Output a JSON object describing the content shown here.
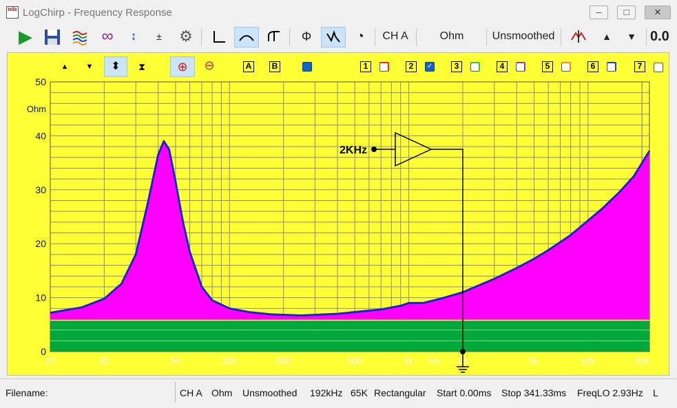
{
  "window": {
    "title": "LogChirp - Frequency Response",
    "app_icon_text": "mls"
  },
  "toolbar": {
    "channel": "CH A",
    "unit": "Ohm",
    "smoothing": "Unsmoothed",
    "value_readout": "0.0"
  },
  "plot_toolbar": {
    "boxes_ab": [
      "A",
      "B"
    ],
    "traces": [
      {
        "label": "1",
        "checked": false,
        "color": "#e0302a"
      },
      {
        "label": "2",
        "checked": true,
        "color": "#1464c8"
      },
      {
        "label": "3",
        "checked": false,
        "color": "#3cc83c"
      },
      {
        "label": "4",
        "checked": false,
        "color": "#8a3cc8"
      },
      {
        "label": "5",
        "checked": false,
        "color": "#f08c28"
      },
      {
        "label": "6",
        "checked": false,
        "color": "#1c3cd8"
      },
      {
        "label": "7",
        "checked": false,
        "color": "#888888"
      }
    ]
  },
  "annotation": {
    "label": "2KHz"
  },
  "chart_data": {
    "type": "area",
    "xscale": "log",
    "xlim": [
      10,
      22000
    ],
    "ylim": [
      0,
      50
    ],
    "ylabel": "Ohm",
    "xunit": "Hz",
    "x_ticks": [
      "10",
      "20",
      "50",
      "100",
      "200",
      "500",
      "1k",
      "2k",
      "5k",
      "10k",
      "20k"
    ],
    "x_tick_values": [
      10,
      20,
      50,
      100,
      200,
      500,
      1000,
      2000,
      5000,
      10000,
      20000
    ],
    "y_ticks": [
      0,
      10,
      20,
      30,
      40,
      50
    ],
    "grid": true,
    "fill_color": "#ff00ff",
    "line_color": "#1428c8",
    "background_color": "#ffff35",
    "baseline_band": {
      "color": "#00a83c",
      "top_value": 5.8
    },
    "series": [
      {
        "x": [
          10,
          15,
          20,
          25,
          30,
          35,
          40,
          43,
          46,
          50,
          55,
          60,
          70,
          80,
          100,
          130,
          170,
          250,
          400,
          700,
          900,
          1000,
          1200,
          1500,
          2000,
          3000,
          4000,
          5000,
          6000,
          8000,
          10000,
          12000,
          15000,
          18000,
          22000
        ],
        "y": [
          7.2,
          8.2,
          9.8,
          12.6,
          18.0,
          27.5,
          36.5,
          39.0,
          37.5,
          31.5,
          24.0,
          18.5,
          12.0,
          9.5,
          8.0,
          7.3,
          6.9,
          6.7,
          7.0,
          7.8,
          8.5,
          9.0,
          9.0,
          9.8,
          11.0,
          13.5,
          15.5,
          17.2,
          18.8,
          21.6,
          24.3,
          26.5,
          29.6,
          32.5,
          37.2
        ]
      }
    ]
  },
  "status": {
    "filename_label": "Filename:",
    "channel": "CH A",
    "unit": "Ohm",
    "smoothing": "Unsmoothed",
    "rate": "192kHz",
    "length": "65K",
    "window": "Rectangular",
    "start": "Start 0.00ms",
    "stop": "Stop 341.33ms",
    "freqlo": "FreqLO 2.93Hz",
    "trailing": "L"
  }
}
